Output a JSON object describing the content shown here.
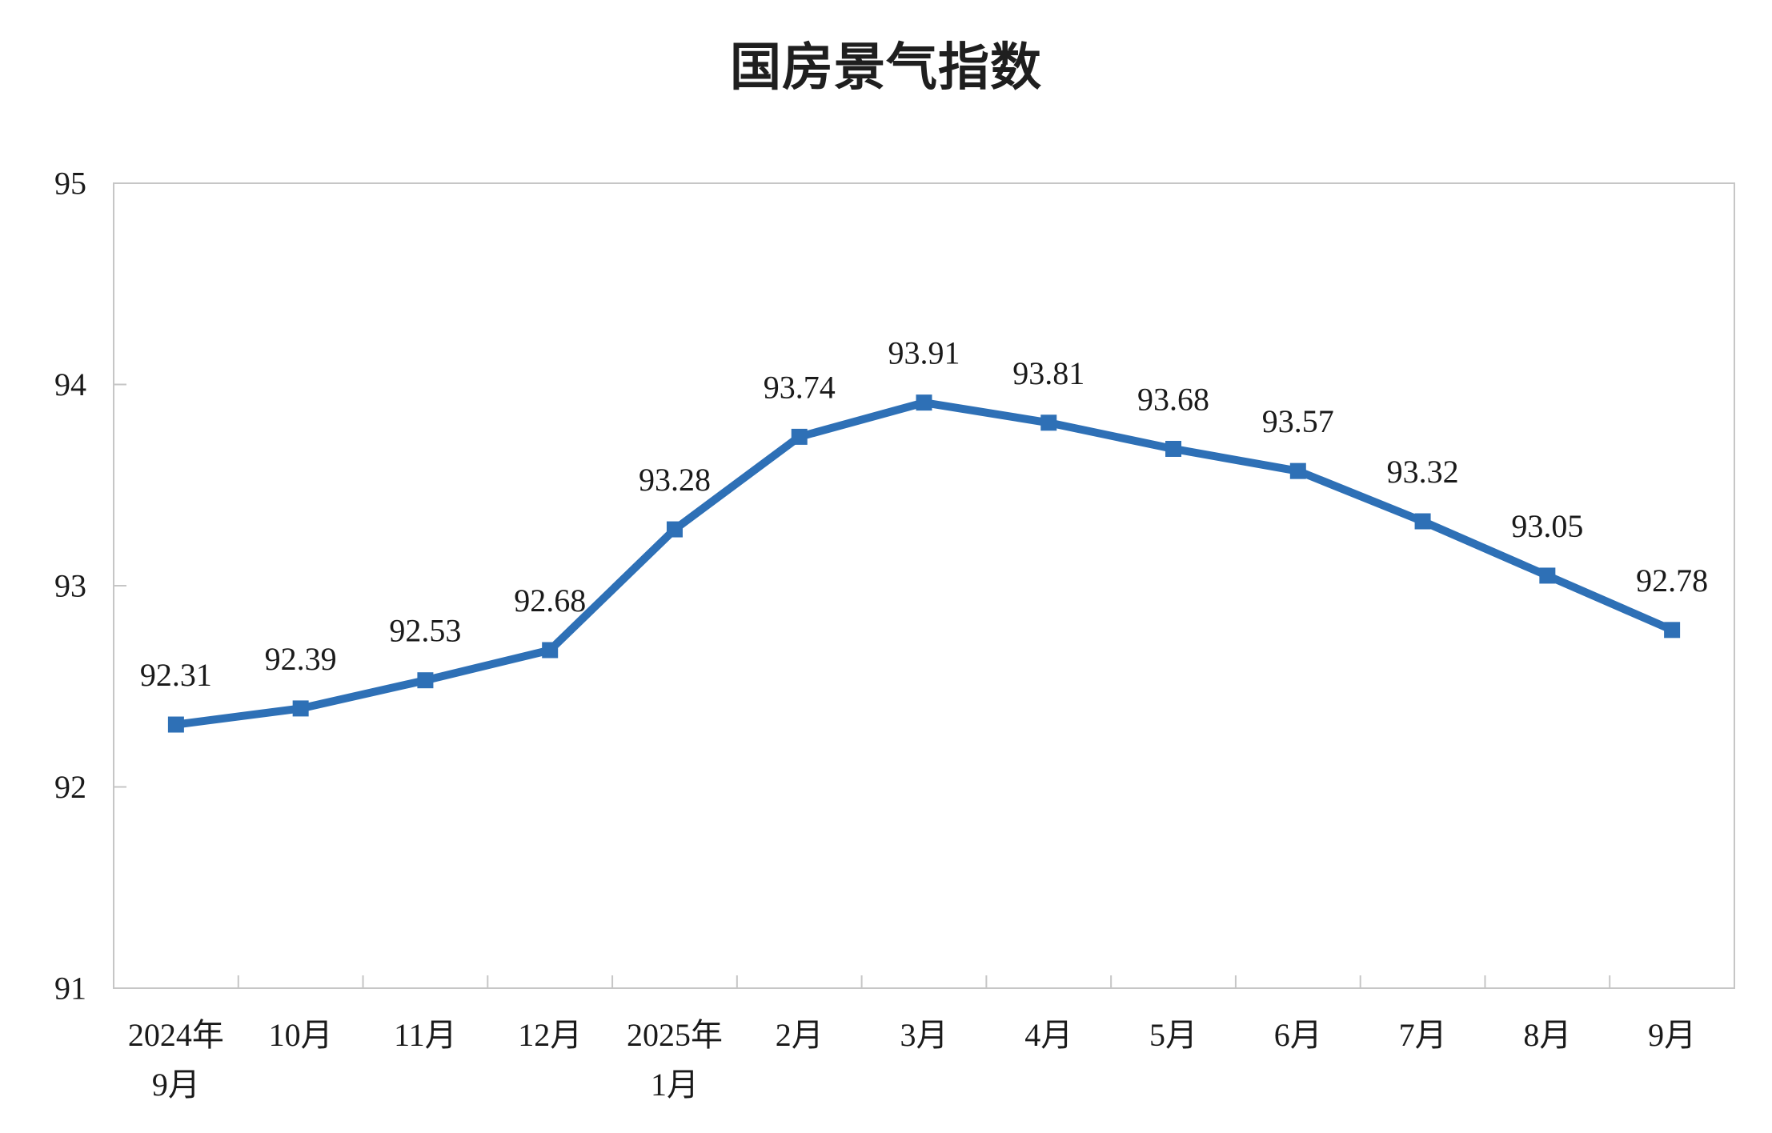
{
  "title": "国房景气指数",
  "chart_data": {
    "type": "line",
    "title": "国房景气指数",
    "categories": [
      "2024年\n9月",
      "10月",
      "11月",
      "12月",
      "2025年\n1月",
      "2月",
      "3月",
      "4月",
      "5月",
      "6月",
      "7月",
      "8月",
      "9月"
    ],
    "series": [
      {
        "name": "国房景气指数",
        "values": [
          92.31,
          92.39,
          92.53,
          92.68,
          93.28,
          93.74,
          93.91,
          93.81,
          93.68,
          93.57,
          93.32,
          93.05,
          92.78
        ]
      }
    ],
    "data_labels": [
      "92.31",
      "92.39",
      "92.53",
      "92.68",
      "93.28",
      "93.74",
      "93.91",
      "93.81",
      "93.68",
      "93.57",
      "93.32",
      "93.05",
      "92.78"
    ],
    "xlabel": "",
    "ylabel": "",
    "ylim": [
      91,
      95
    ],
    "y_tick_step": 1,
    "y_tick_labels": [
      "91",
      "92",
      "93",
      "94",
      "95"
    ],
    "grid": false,
    "legend": false,
    "marker": "square",
    "line_color": "#2e70b6",
    "axis_color": "#c6c6c6",
    "text_color": "#1a1a1a"
  }
}
